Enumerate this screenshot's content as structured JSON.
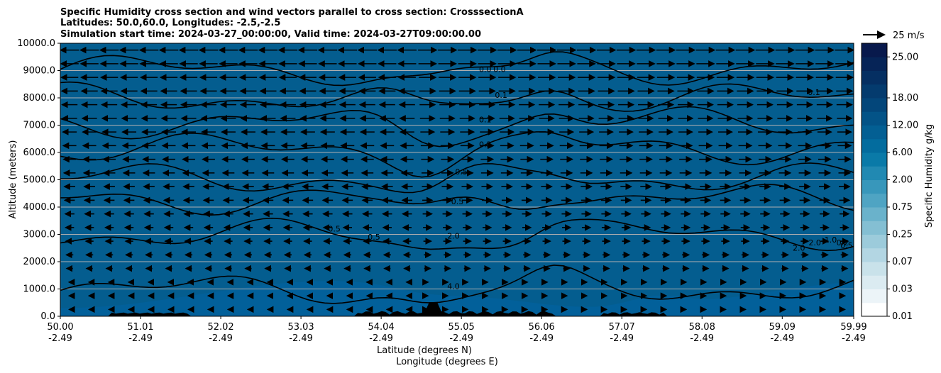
{
  "chart_data": {
    "type": "heatmap",
    "title_lines": [
      "Specific Humidity cross section and wind vectors parallel to cross section: CrosssectionA",
      "Latitudes: 50.0,60.0, Longitudes: -2.5,-2.5",
      "Simulation start time: 2024-03-27_00:00:00, Valid time: 2024-03-27T09:00:00.00"
    ],
    "ylabel": "Altitude (meters)",
    "xlabel_lines": [
      "Latitude (degrees N)",
      "Longitude (degrees E)"
    ],
    "ylim": [
      0,
      10000
    ],
    "y_ticks": [
      "0.0",
      "1000.0",
      "2000.0",
      "3000.0",
      "4000.0",
      "5000.0",
      "6000.0",
      "7000.0",
      "8000.0",
      "9000.0",
      "10000.0"
    ],
    "x_ticks": [
      {
        "lat": "50.00",
        "lon": "-2.49"
      },
      {
        "lat": "51.01",
        "lon": "-2.49"
      },
      {
        "lat": "52.02",
        "lon": "-2.49"
      },
      {
        "lat": "53.03",
        "lon": "-2.49"
      },
      {
        "lat": "54.04",
        "lon": "-2.49"
      },
      {
        "lat": "55.05",
        "lon": "-2.49"
      },
      {
        "lat": "56.06",
        "lon": "-2.49"
      },
      {
        "lat": "57.07",
        "lon": "-2.49"
      },
      {
        "lat": "58.08",
        "lon": "-2.49"
      },
      {
        "lat": "59.09",
        "lon": "-2.49"
      },
      {
        "lat": "59.99",
        "lon": "-2.49"
      }
    ],
    "xlim_lat": [
      50.0,
      59.99
    ],
    "colorbar": {
      "label": "Specific Humidity g/kg",
      "tick_labels": [
        "0.01",
        "0.03",
        "0.07",
        "0.25",
        "0.75",
        "2.00",
        "6.00",
        "12.00",
        "18.00",
        "25.00"
      ],
      "colors": [
        "#ffffff",
        "#ecf4f8",
        "#dbebf1",
        "#c9e2ea",
        "#b3d6e3",
        "#9ccbdb",
        "#84bfd3",
        "#6ab2cb",
        "#4fa4c3",
        "#3897bb",
        "#2189b2",
        "#0a7aa8",
        "#036c9e",
        "#035f93",
        "#035387",
        "#03467a",
        "#043b6e",
        "#052f62",
        "#062457",
        "#08194c"
      ],
      "ticks_in_levels": [
        0,
        2,
        4,
        6,
        8,
        10,
        12,
        14,
        16,
        19
      ]
    },
    "quiver_key": {
      "label": "25 m/s",
      "value": 25
    },
    "contour_labels": [
      {
        "text": "0.0",
        "lat": 55.53,
        "alt": 8950
      },
      {
        "text": "0.0",
        "lat": 55.35,
        "alt": 8950
      },
      {
        "text": "0.1",
        "lat": 55.55,
        "alt": 8000
      },
      {
        "text": "0.1",
        "lat": 55.35,
        "alt": 7100
      },
      {
        "text": "0.2",
        "lat": 55.35,
        "alt": 6200
      },
      {
        "text": "0.5",
        "lat": 55.05,
        "alt": 5200
      },
      {
        "text": "0.5",
        "lat": 55.0,
        "alt": 4100
      },
      {
        "text": "0.5",
        "lat": 53.45,
        "alt": 3100
      },
      {
        "text": "0.5",
        "lat": 53.95,
        "alt": 2800
      },
      {
        "text": "2.0",
        "lat": 54.95,
        "alt": 2850
      },
      {
        "text": "4.0",
        "lat": 54.95,
        "alt": 1000
      },
      {
        "text": "0.1",
        "lat": 59.49,
        "alt": 8100
      },
      {
        "text": "2.0",
        "lat": 59.3,
        "alt": 2400
      },
      {
        "text": "2.0",
        "lat": 59.5,
        "alt": 2600
      },
      {
        "text": "1.0",
        "lat": 59.7,
        "alt": 2700
      },
      {
        "text": "0.2",
        "lat": 59.85,
        "alt": 2600
      },
      {
        "text": "0.5",
        "lat": 59.9,
        "alt": 2500
      }
    ]
  }
}
